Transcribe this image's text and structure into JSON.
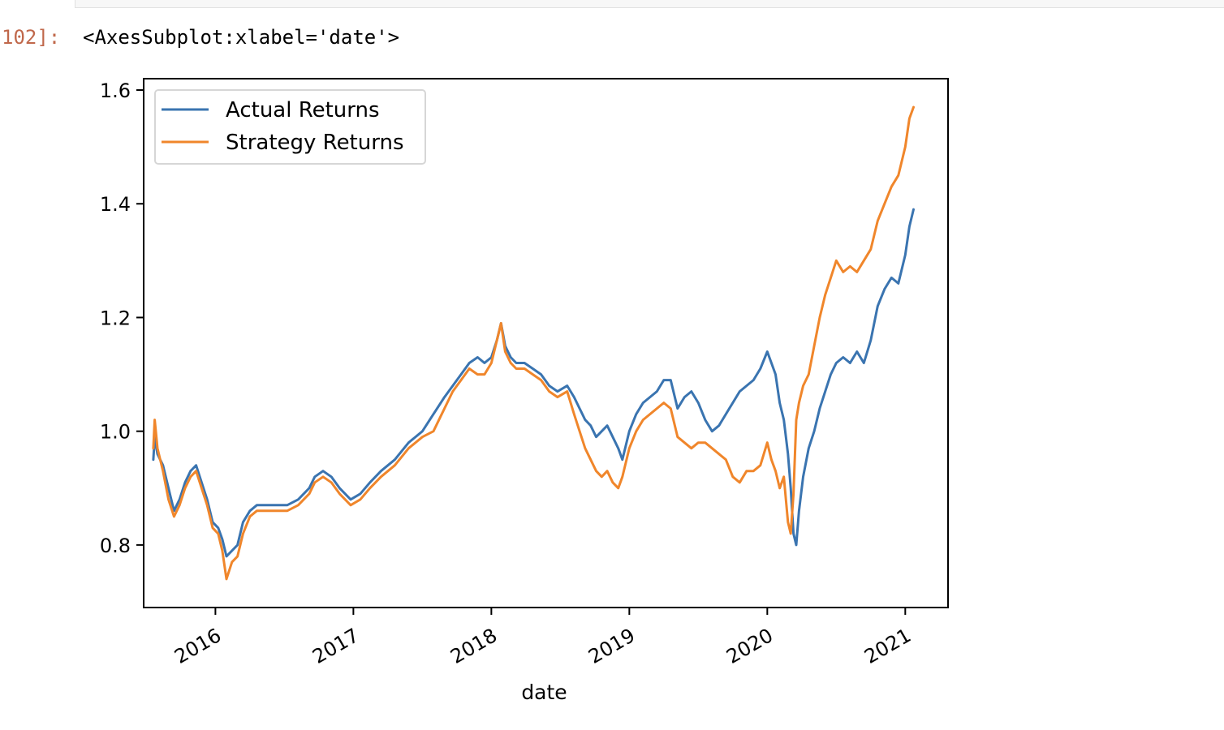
{
  "notebook": {
    "prompt": "102]:",
    "output_repr": "<AxesSubplot:xlabel='date'>"
  },
  "colors": {
    "prompt": "#c0684b",
    "series_actual": "#3a74b0",
    "series_strategy": "#f0862b"
  },
  "chart_data": {
    "type": "line",
    "xlabel": "date",
    "ylabel": "",
    "xlim": [
      2015.48,
      2021.31
    ],
    "ylim": [
      0.69,
      1.62
    ],
    "x_ticks": [
      {
        "value": 2016.0,
        "label": "2016"
      },
      {
        "value": 2017.0,
        "label": "2017"
      },
      {
        "value": 2018.0,
        "label": "2018"
      },
      {
        "value": 2019.0,
        "label": "2019"
      },
      {
        "value": 2020.0,
        "label": "2020"
      },
      {
        "value": 2021.0,
        "label": "2021"
      }
    ],
    "y_ticks": [
      {
        "value": 0.8,
        "label": "0.8"
      },
      {
        "value": 1.0,
        "label": "1.0"
      },
      {
        "value": 1.2,
        "label": "1.2"
      },
      {
        "value": 1.4,
        "label": "1.4"
      },
      {
        "value": 1.6,
        "label": "1.6"
      }
    ],
    "grid": false,
    "legend_position": "upper-left",
    "series": [
      {
        "name": "Actual Returns",
        "color": "#3a74b0",
        "x": [
          2015.55,
          2015.56,
          2015.58,
          2015.62,
          2015.66,
          2015.7,
          2015.74,
          2015.78,
          2015.82,
          2015.86,
          2015.9,
          2015.94,
          2015.98,
          2016.02,
          2016.05,
          2016.08,
          2016.12,
          2016.16,
          2016.2,
          2016.25,
          2016.3,
          2016.35,
          2016.4,
          2016.45,
          2016.52,
          2016.6,
          2016.68,
          2016.72,
          2016.78,
          2016.84,
          2016.9,
          2016.94,
          2016.98,
          2017.05,
          2017.12,
          2017.2,
          2017.3,
          2017.4,
          2017.5,
          2017.58,
          2017.66,
          2017.72,
          2017.78,
          2017.84,
          2017.9,
          2017.95,
          2018.0,
          2018.04,
          2018.07,
          2018.1,
          2018.14,
          2018.18,
          2018.24,
          2018.3,
          2018.36,
          2018.42,
          2018.48,
          2018.55,
          2018.6,
          2018.64,
          2018.68,
          2018.72,
          2018.76,
          2018.8,
          2018.84,
          2018.88,
          2018.92,
          2018.95,
          2019.0,
          2019.05,
          2019.1,
          2019.15,
          2019.2,
          2019.25,
          2019.3,
          2019.35,
          2019.4,
          2019.45,
          2019.5,
          2019.55,
          2019.6,
          2019.65,
          2019.7,
          2019.75,
          2019.8,
          2019.85,
          2019.9,
          2019.95,
          2020.0,
          2020.03,
          2020.06,
          2020.09,
          2020.12,
          2020.15,
          2020.17,
          2020.19,
          2020.21,
          2020.23,
          2020.26,
          2020.3,
          2020.34,
          2020.38,
          2020.42,
          2020.46,
          2020.5,
          2020.55,
          2020.6,
          2020.65,
          2020.7,
          2020.75,
          2020.8,
          2020.85,
          2020.9,
          2020.95,
          2021.0,
          2021.03,
          2021.06
        ],
        "y": [
          0.95,
          0.99,
          0.96,
          0.94,
          0.9,
          0.86,
          0.88,
          0.91,
          0.93,
          0.94,
          0.91,
          0.88,
          0.84,
          0.83,
          0.81,
          0.78,
          0.79,
          0.8,
          0.84,
          0.86,
          0.87,
          0.87,
          0.87,
          0.87,
          0.87,
          0.88,
          0.9,
          0.92,
          0.93,
          0.92,
          0.9,
          0.89,
          0.88,
          0.89,
          0.91,
          0.93,
          0.95,
          0.98,
          1.0,
          1.03,
          1.06,
          1.08,
          1.1,
          1.12,
          1.13,
          1.12,
          1.13,
          1.16,
          1.19,
          1.15,
          1.13,
          1.12,
          1.12,
          1.11,
          1.1,
          1.08,
          1.07,
          1.08,
          1.06,
          1.04,
          1.02,
          1.01,
          0.99,
          1.0,
          1.01,
          0.99,
          0.97,
          0.95,
          1.0,
          1.03,
          1.05,
          1.06,
          1.07,
          1.09,
          1.09,
          1.04,
          1.06,
          1.07,
          1.05,
          1.02,
          1.0,
          1.01,
          1.03,
          1.05,
          1.07,
          1.08,
          1.09,
          1.11,
          1.14,
          1.12,
          1.1,
          1.05,
          1.02,
          0.96,
          0.9,
          0.82,
          0.8,
          0.86,
          0.92,
          0.97,
          1.0,
          1.04,
          1.07,
          1.1,
          1.12,
          1.13,
          1.12,
          1.14,
          1.12,
          1.16,
          1.22,
          1.25,
          1.27,
          1.26,
          1.31,
          1.36,
          1.39
        ]
      },
      {
        "name": "Strategy Returns",
        "color": "#f0862b",
        "x": [
          2015.55,
          2015.56,
          2015.58,
          2015.62,
          2015.66,
          2015.7,
          2015.74,
          2015.78,
          2015.82,
          2015.86,
          2015.9,
          2015.94,
          2015.98,
          2016.02,
          2016.05,
          2016.08,
          2016.12,
          2016.16,
          2016.2,
          2016.25,
          2016.3,
          2016.35,
          2016.4,
          2016.45,
          2016.52,
          2016.6,
          2016.68,
          2016.72,
          2016.78,
          2016.84,
          2016.9,
          2016.94,
          2016.98,
          2017.05,
          2017.12,
          2017.2,
          2017.3,
          2017.4,
          2017.5,
          2017.58,
          2017.66,
          2017.72,
          2017.78,
          2017.84,
          2017.9,
          2017.95,
          2018.0,
          2018.04,
          2018.07,
          2018.1,
          2018.14,
          2018.18,
          2018.24,
          2018.3,
          2018.36,
          2018.42,
          2018.48,
          2018.55,
          2018.6,
          2018.64,
          2018.68,
          2018.72,
          2018.76,
          2018.8,
          2018.84,
          2018.88,
          2018.92,
          2018.95,
          2019.0,
          2019.05,
          2019.1,
          2019.15,
          2019.2,
          2019.25,
          2019.3,
          2019.35,
          2019.4,
          2019.45,
          2019.5,
          2019.55,
          2019.6,
          2019.65,
          2019.7,
          2019.75,
          2019.8,
          2019.85,
          2019.9,
          2019.95,
          2020.0,
          2020.03,
          2020.06,
          2020.09,
          2020.12,
          2020.15,
          2020.17,
          2020.19,
          2020.21,
          2020.23,
          2020.26,
          2020.3,
          2020.34,
          2020.38,
          2020.42,
          2020.46,
          2020.5,
          2020.55,
          2020.6,
          2020.65,
          2020.7,
          2020.75,
          2020.8,
          2020.85,
          2020.9,
          2020.95,
          2021.0,
          2021.03,
          2021.06
        ],
        "y": [
          0.97,
          1.02,
          0.97,
          0.93,
          0.88,
          0.85,
          0.87,
          0.9,
          0.92,
          0.93,
          0.9,
          0.87,
          0.83,
          0.82,
          0.79,
          0.74,
          0.77,
          0.78,
          0.82,
          0.85,
          0.86,
          0.86,
          0.86,
          0.86,
          0.86,
          0.87,
          0.89,
          0.91,
          0.92,
          0.91,
          0.89,
          0.88,
          0.87,
          0.88,
          0.9,
          0.92,
          0.94,
          0.97,
          0.99,
          1.0,
          1.04,
          1.07,
          1.09,
          1.11,
          1.1,
          1.1,
          1.12,
          1.16,
          1.19,
          1.14,
          1.12,
          1.11,
          1.11,
          1.1,
          1.09,
          1.07,
          1.06,
          1.07,
          1.03,
          1.0,
          0.97,
          0.95,
          0.93,
          0.92,
          0.93,
          0.91,
          0.9,
          0.92,
          0.97,
          1.0,
          1.02,
          1.03,
          1.04,
          1.05,
          1.04,
          0.99,
          0.98,
          0.97,
          0.98,
          0.98,
          0.97,
          0.96,
          0.95,
          0.92,
          0.91,
          0.93,
          0.93,
          0.94,
          0.98,
          0.95,
          0.93,
          0.9,
          0.92,
          0.84,
          0.82,
          0.89,
          1.02,
          1.05,
          1.08,
          1.1,
          1.15,
          1.2,
          1.24,
          1.27,
          1.3,
          1.28,
          1.29,
          1.28,
          1.3,
          1.32,
          1.37,
          1.4,
          1.43,
          1.45,
          1.5,
          1.55,
          1.57
        ]
      }
    ]
  }
}
